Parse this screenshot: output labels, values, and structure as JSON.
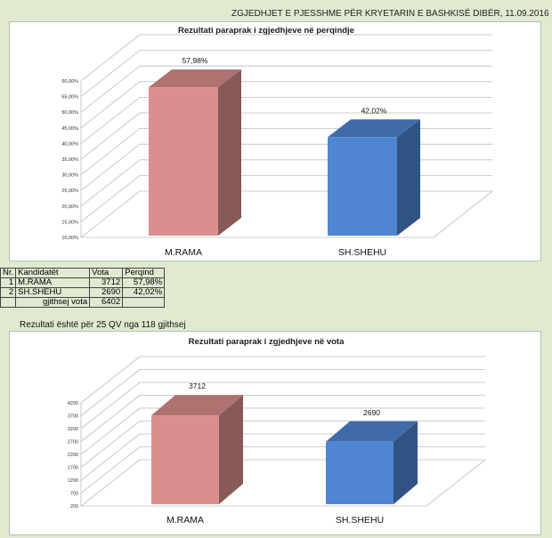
{
  "header": "ZGJEDHJET E PJESSHME PËR KRYETARIN E BASHKISË DIBËR, 11.09.2016",
  "table": {
    "headers": [
      "Nr.",
      "Kandidatët",
      "Vota",
      "Perqind"
    ],
    "rows": [
      [
        "1",
        "M.RAMA",
        "3712",
        "57,98%"
      ],
      [
        "2",
        "SH.SHEHU",
        "2690",
        "42,02%"
      ]
    ],
    "total_label": "gjithsej vota",
    "total_value": "6402"
  },
  "note": "Rezultati është për 25 QV nga 118 gjithsej",
  "colors": {
    "bar1": "#d98f8d",
    "bar2": "#4f86d3"
  },
  "chart_data": [
    {
      "type": "bar",
      "title": "Rezultati paraprak i zgjedhjeve në perqindje",
      "categories": [
        "M.RAMA",
        "SH.SHEHU"
      ],
      "values": [
        57.98,
        42.02
      ],
      "data_labels": [
        "57,98%",
        "42,02%"
      ],
      "yticks": [
        "10,00%",
        "15,00%",
        "20,00%",
        "25,00%",
        "30,00%",
        "35,00%",
        "40,00%",
        "45,00%",
        "50,00%",
        "55,00%",
        "60,00%"
      ],
      "ylim": [
        10,
        60
      ],
      "grid": true,
      "style": "3d"
    },
    {
      "type": "bar",
      "title": "Rezultati paraprak i zgjedhjeve në vota",
      "categories": [
        "M.RAMA",
        "SH.SHEHU"
      ],
      "values": [
        3712,
        2690
      ],
      "data_labels": [
        "3712",
        "2690"
      ],
      "yticks": [
        "200",
        "700",
        "1200",
        "1700",
        "2200",
        "2700",
        "3200",
        "3700",
        "4200"
      ],
      "ylim": [
        200,
        4200
      ],
      "grid": true,
      "style": "3d"
    }
  ]
}
